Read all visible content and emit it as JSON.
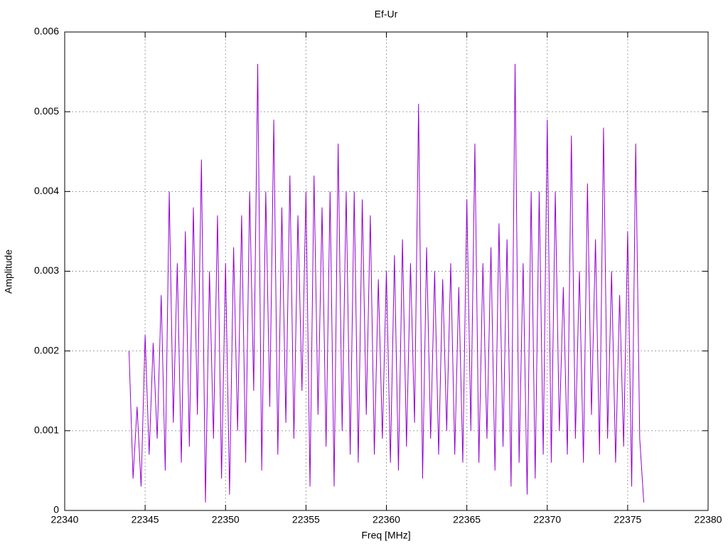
{
  "chart_data": {
    "type": "line",
    "title": "Ef-Ur",
    "x_label": "Freq [MHz]",
    "y_label": "Amplitude",
    "xlim": [
      22340,
      22380
    ],
    "xticks": [
      22340,
      22345,
      22350,
      22355,
      22360,
      22365,
      22370,
      22375,
      22380
    ],
    "ylim": [
      0,
      0.006
    ],
    "yticks": [
      0,
      0.001,
      0.002,
      0.003,
      0.004,
      0.005,
      0.006
    ],
    "grid": true,
    "x": [
      22344,
      22344.25,
      22344.5,
      22344.75,
      22345,
      22345.25,
      22345.5,
      22345.75,
      22346,
      22346.25,
      22346.5,
      22346.75,
      22347,
      22347.25,
      22347.5,
      22347.75,
      22348,
      22348.25,
      22348.5,
      22348.75,
      22349,
      22349.25,
      22349.5,
      22349.75,
      22350,
      22350.25,
      22350.5,
      22350.75,
      22351,
      22351.25,
      22351.5,
      22351.75,
      22352,
      22352.25,
      22352.5,
      22352.75,
      22353,
      22353.25,
      22353.5,
      22353.75,
      22354,
      22354.25,
      22354.5,
      22354.75,
      22355,
      22355.25,
      22355.5,
      22355.75,
      22356,
      22356.25,
      22356.5,
      22356.75,
      22357,
      22357.25,
      22357.5,
      22357.75,
      22358,
      22358.25,
      22358.5,
      22358.75,
      22359,
      22359.25,
      22359.5,
      22359.75,
      22360,
      22360.25,
      22360.5,
      22360.75,
      22361,
      22361.25,
      22361.5,
      22361.75,
      22362,
      22362.25,
      22362.5,
      22362.75,
      22363,
      22363.25,
      22363.5,
      22363.75,
      22364,
      22364.25,
      22364.5,
      22364.75,
      22365,
      22365.25,
      22365.5,
      22365.75,
      22366,
      22366.25,
      22366.5,
      22366.75,
      22367,
      22367.25,
      22367.5,
      22367.75,
      22368,
      22368.25,
      22368.5,
      22368.75,
      22369,
      22369.25,
      22369.5,
      22369.75,
      22370,
      22370.25,
      22370.5,
      22370.75,
      22371,
      22371.25,
      22371.5,
      22371.75,
      22372,
      22372.25,
      22372.5,
      22372.75,
      22373,
      22373.25,
      22373.5,
      22373.75,
      22374,
      22374.25,
      22374.5,
      22374.75,
      22375,
      22375.25,
      22375.5,
      22375.75,
      22376
    ],
    "series": [
      {
        "color": "#9400d3",
        "values": [
          0.002,
          0.0004,
          0.0013,
          0.0003,
          0.0022,
          0.0007,
          0.0021,
          0.0009,
          0.0027,
          0.0005,
          0.004,
          0.0011,
          0.0031,
          0.0006,
          0.0035,
          0.0008,
          0.0038,
          0.0012,
          0.0044,
          0.0001,
          0.003,
          0.0009,
          0.0037,
          0.0004,
          0.0031,
          0.0002,
          0.0033,
          0.001,
          0.0037,
          0.0006,
          0.004,
          0.0015,
          0.0056,
          0.0005,
          0.004,
          0.0013,
          0.0049,
          0.0007,
          0.0038,
          0.0011,
          0.0042,
          0.0009,
          0.0037,
          0.0015,
          0.004,
          0.0003,
          0.0042,
          0.0012,
          0.0038,
          0.0008,
          0.004,
          0.0003,
          0.0046,
          0.001,
          0.004,
          0.0007,
          0.004,
          0.0006,
          0.0039,
          0.0012,
          0.0037,
          0.0007,
          0.0029,
          0.0009,
          0.003,
          0.0006,
          0.0032,
          0.0005,
          0.0034,
          0.0008,
          0.0031,
          0.0011,
          0.0051,
          0.0004,
          0.0033,
          0.0009,
          0.003,
          0.0007,
          0.0029,
          0.001,
          0.0031,
          0.0007,
          0.0028,
          0.0006,
          0.0039,
          0.001,
          0.0046,
          0.0006,
          0.0031,
          0.0009,
          0.0033,
          0.0005,
          0.0036,
          0.0008,
          0.0034,
          0.0003,
          0.0056,
          0.0006,
          0.0031,
          0.0002,
          0.004,
          0.0004,
          0.004,
          0.0007,
          0.0049,
          0.0006,
          0.004,
          0.001,
          0.0028,
          0.0007,
          0.0047,
          0.0009,
          0.003,
          0.0006,
          0.0041,
          0.0012,
          0.0034,
          0.0007,
          0.0048,
          0.0009,
          0.003,
          0.0006,
          0.0027,
          0.0008,
          0.0035,
          0.0003,
          0.0046,
          0.0009,
          0.0001
        ]
      }
    ]
  }
}
